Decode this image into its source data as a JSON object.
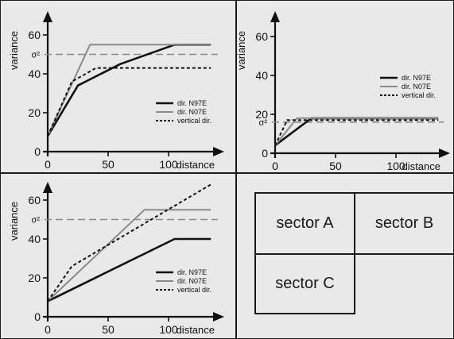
{
  "chart_data": [
    {
      "type": "line",
      "xlabel": "distance",
      "ylabel": "variance",
      "xticks": [
        0,
        50,
        100
      ],
      "yticks": [
        0,
        20,
        40,
        60
      ],
      "xlim": [
        0,
        135
      ],
      "ylim": [
        0,
        70
      ],
      "reference_line": {
        "label": "σ²",
        "y": 50
      },
      "legend_position": "lower-right",
      "series": [
        {
          "name": "dir. N97E",
          "x": [
            0,
            25,
            60,
            105,
            135
          ],
          "y": [
            8,
            34,
            45,
            55,
            55
          ]
        },
        {
          "name": "dir. N07E",
          "x": [
            0,
            35,
            135
          ],
          "y": [
            8,
            55,
            55
          ]
        },
        {
          "name": "vertical dir.",
          "x": [
            0,
            20,
            40,
            135
          ],
          "y": [
            8,
            36,
            43,
            43
          ]
        }
      ]
    },
    {
      "type": "line",
      "xlabel": "distance",
      "ylabel": "variance",
      "xticks": [
        0,
        50,
        100
      ],
      "yticks": [
        0,
        20,
        40,
        60
      ],
      "xlim": [
        0,
        135
      ],
      "ylim": [
        0,
        70
      ],
      "reference_line": {
        "label": "σ²",
        "y": 16
      },
      "legend_position": "middle-right",
      "series": [
        {
          "name": "dir. N97E",
          "x": [
            0,
            30,
            135
          ],
          "y": [
            4,
            18,
            18
          ]
        },
        {
          "name": "dir. N07E",
          "x": [
            0,
            18,
            135
          ],
          "y": [
            4,
            18,
            18
          ]
        },
        {
          "name": "vertical dir.",
          "x": [
            0,
            10,
            135
          ],
          "y": [
            4,
            17,
            17
          ]
        }
      ]
    },
    {
      "type": "line",
      "xlabel": "distance",
      "ylabel": "variance",
      "xticks": [
        0,
        50,
        100
      ],
      "yticks": [
        0,
        20,
        40,
        60
      ],
      "xlim": [
        0,
        135
      ],
      "ylim": [
        0,
        70
      ],
      "reference_line": {
        "label": "σ²",
        "y": 50
      },
      "legend_position": "lower-right",
      "series": [
        {
          "name": "dir. N97E",
          "x": [
            0,
            105,
            135
          ],
          "y": [
            8,
            40,
            40
          ]
        },
        {
          "name": "dir. N07E",
          "x": [
            0,
            80,
            135
          ],
          "y": [
            8,
            55,
            55
          ]
        },
        {
          "name": "vertical dir.",
          "x": [
            0,
            20,
            135
          ],
          "y": [
            8,
            26,
            68
          ]
        }
      ]
    }
  ],
  "sectors": {
    "a": "sector A",
    "b": "sector B",
    "c": "sector C"
  },
  "colors": {
    "background": "#e9e9e9",
    "n97e": "#111111",
    "n07e": "#8a8a8a",
    "vertical": "#111111",
    "sigma_line": "#8a8a8a"
  }
}
